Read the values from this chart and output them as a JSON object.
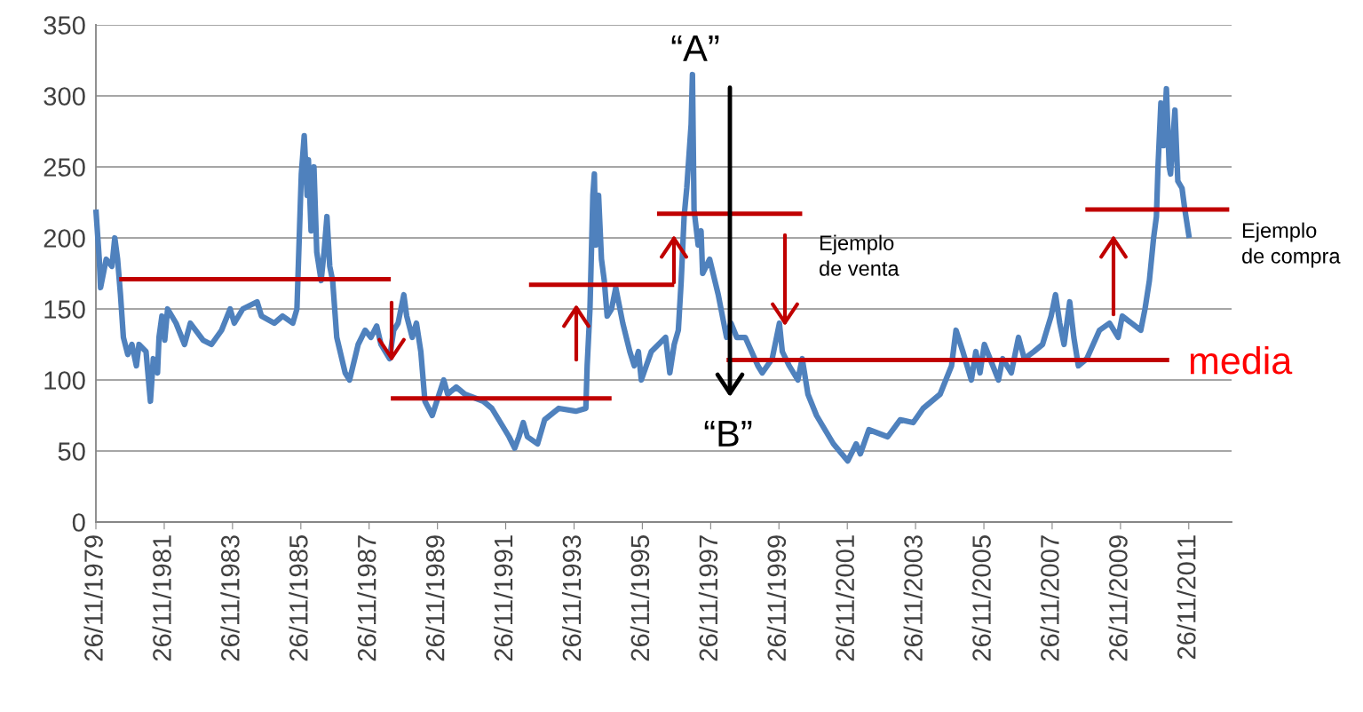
{
  "chart_data": {
    "type": "line",
    "xlim": [
      "1979-11-26",
      "2013-02-26"
    ],
    "ylim": [
      0,
      350
    ],
    "yticks": [
      0,
      50,
      100,
      150,
      200,
      250,
      300,
      350
    ],
    "xticks": [
      {
        "value": "1979-11-26",
        "label": "26/11/1979"
      },
      {
        "value": "1981-11-26",
        "label": "26/11/1981"
      },
      {
        "value": "1983-11-26",
        "label": "26/11/1983"
      },
      {
        "value": "1985-11-26",
        "label": "26/11/1985"
      },
      {
        "value": "1987-11-26",
        "label": "26/11/1987"
      },
      {
        "value": "1989-11-26",
        "label": "26/11/1989"
      },
      {
        "value": "1991-11-26",
        "label": "26/11/1991"
      },
      {
        "value": "1993-11-26",
        "label": "26/11/1993"
      },
      {
        "value": "1995-11-26",
        "label": "26/11/1995"
      },
      {
        "value": "1997-11-26",
        "label": "26/11/1997"
      },
      {
        "value": "1999-11-26",
        "label": "26/11/1999"
      },
      {
        "value": "2001-11-26",
        "label": "26/11/2001"
      },
      {
        "value": "2003-11-26",
        "label": "26/11/2003"
      },
      {
        "value": "2005-11-26",
        "label": "26/11/2005"
      },
      {
        "value": "2007-11-26",
        "label": "26/11/2007"
      },
      {
        "value": "2009-11-26",
        "label": "26/11/2009"
      },
      {
        "value": "2011-11-26",
        "label": "26/11/2011"
      }
    ],
    "grid": "y",
    "marker": "none",
    "line_style": "solid",
    "series": [
      {
        "color": "#4f81bd",
        "x": [
          "1979-11-26",
          "1980-01-01",
          "1980-01-15",
          "1980-03-15",
          "1980-05-15",
          "1980-06-15",
          "1980-07-15",
          "1980-08-15",
          "1980-09-15",
          "1980-11-01",
          "1980-12-15",
          "1981-02-01",
          "1981-03-01",
          "1981-05-15",
          "1981-07-01",
          "1981-08-01",
          "1981-09-15",
          "1981-10-01",
          "1981-11-01",
          "1981-12-01",
          "1982-01-01",
          "1982-04-01",
          "1982-07-01",
          "1982-09-01",
          "1983-01-15",
          "1983-04-15",
          "1983-08-01",
          "1983-11-01",
          "1983-12-15",
          "1984-03-15",
          "1984-08-15",
          "1984-10-01",
          "1985-02-15",
          "1985-05-15",
          "1985-09-01",
          "1985-10-15",
          "1985-12-01",
          "1986-01-01",
          "1986-02-01",
          "1986-02-15",
          "1986-03-15",
          "1986-04-15",
          "1986-05-15",
          "1986-07-01",
          "1986-08-01",
          "1986-09-01",
          "1986-10-01",
          "1986-11-01",
          "1986-12-15",
          "1987-03-15",
          "1987-05-01",
          "1987-08-01",
          "1987-10-15",
          "1987-12-15",
          "1988-02-15",
          "1988-04-01",
          "1988-07-01",
          "1988-08-15",
          "1988-10-01",
          "1988-12-01",
          "1989-01-01",
          "1989-03-01",
          "1989-04-15",
          "1989-06-01",
          "1989-07-15",
          "1989-10-01",
          "1990-02-01",
          "1990-03-15",
          "1990-06-15",
          "1990-09-15",
          "1991-04-01",
          "1991-07-01",
          "1991-10-01",
          "1992-01-01",
          "1992-03-01",
          "1992-04-15",
          "1992-06-01",
          "1992-07-15",
          "1992-11-01",
          "1993-01-15",
          "1993-06-15",
          "1993-12-15",
          "1994-04-01",
          "1994-04-15",
          "1994-05-15",
          "1994-06-15",
          "1994-07-01",
          "1994-07-15",
          "1994-08-15",
          "1994-09-15",
          "1994-10-15",
          "1994-11-15",
          "1995-01-01",
          "1995-02-15",
          "1995-05-01",
          "1995-07-15",
          "1995-09-01",
          "1995-10-15",
          "1995-11-15",
          "1996-03-01",
          "1996-08-01",
          "1996-09-15",
          "1996-11-01",
          "1996-12-15",
          "1997-01-15",
          "1997-02-15",
          "1997-03-15",
          "1997-05-01",
          "1997-05-15",
          "1997-06-01",
          "1997-07-15",
          "1997-08-15",
          "1997-09-01",
          "1997-11-15",
          "1998-02-15",
          "1998-05-15",
          "1998-07-01",
          "1998-09-01",
          "1998-12-01",
          "1999-04-15",
          "1999-06-01",
          "1999-09-15",
          "1999-12-01",
          "2000-01-01",
          "2000-03-15",
          "2000-06-15",
          "2000-08-01",
          "2000-10-01",
          "2001-01-01",
          "2001-04-01",
          "2001-07-01",
          "2001-12-01",
          "2002-03-01",
          "2002-04-15",
          "2002-07-15",
          "2003-02-01",
          "2003-06-15",
          "2003-11-01",
          "2004-02-15",
          "2004-08-15",
          "2004-12-15",
          "2005-02-01",
          "2005-04-15",
          "2005-07-15",
          "2005-09-01",
          "2005-10-15",
          "2005-12-01",
          "2006-05-01",
          "2006-06-15",
          "2006-09-15",
          "2006-12-01",
          "2007-02-01",
          "2007-05-15",
          "2007-08-15",
          "2007-11-15",
          "2008-01-01",
          "2008-02-15",
          "2008-04-01",
          "2008-06-01",
          "2008-07-15",
          "2008-09-01",
          "2008-12-01",
          "2009-04-15",
          "2009-08-01",
          "2009-11-01",
          "2009-12-15",
          "2010-07-01",
          "2010-08-15",
          "2010-10-01",
          "2010-11-15",
          "2010-12-15",
          "2011-01-01",
          "2011-02-01",
          "2011-03-01",
          "2011-04-01",
          "2011-05-01",
          "2011-05-15",
          "2011-07-01",
          "2011-08-01",
          "2011-09-15",
          "2011-10-15",
          "2011-12-01"
        ],
        "values": [
          220,
          185,
          165,
          185,
          180,
          200,
          185,
          160,
          130,
          118,
          125,
          110,
          125,
          120,
          85,
          115,
          105,
          130,
          145,
          128,
          150,
          140,
          125,
          140,
          128,
          125,
          135,
          150,
          140,
          150,
          155,
          145,
          140,
          145,
          140,
          150,
          245,
          272,
          230,
          255,
          205,
          250,
          190,
          170,
          190,
          215,
          180,
          170,
          130,
          105,
          100,
          125,
          135,
          130,
          138,
          125,
          115,
          135,
          140,
          160,
          145,
          130,
          140,
          120,
          85,
          75,
          100,
          90,
          95,
          90,
          85,
          80,
          70,
          60,
          52,
          60,
          70,
          60,
          55,
          72,
          80,
          78,
          80,
          110,
          150,
          230,
          245,
          195,
          230,
          185,
          170,
          145,
          150,
          165,
          140,
          120,
          110,
          120,
          100,
          120,
          130,
          105,
          125,
          135,
          170,
          215,
          235,
          280,
          315,
          220,
          195,
          205,
          175,
          185,
          160,
          130,
          140,
          130,
          130,
          110,
          105,
          115,
          140,
          120,
          110,
          100,
          115,
          90,
          75,
          65,
          55,
          43,
          55,
          48,
          65,
          60,
          72,
          70,
          80,
          90,
          110,
          135,
          120,
          100,
          120,
          105,
          125,
          100,
          115,
          105,
          130,
          115,
          120,
          125,
          145,
          160,
          140,
          125,
          155,
          130,
          110,
          115,
          135,
          140,
          130,
          145,
          135,
          150,
          170,
          200,
          215,
          250,
          295,
          265,
          305,
          250,
          245,
          290,
          240,
          235,
          220,
          200
        ]
      },
      {
        "color": "#c00000",
        "x": [
          "1980-08-01",
          "1988-07-15"
        ],
        "values": [
          171,
          171
        ]
      },
      {
        "color": "#c00000",
        "x": [
          "1988-07-15",
          "1995-01-01"
        ],
        "values": [
          87,
          87
        ]
      },
      {
        "color": "#c00000",
        "x": [
          "1992-08-01",
          "1996-11-01"
        ],
        "values": [
          167,
          167
        ]
      },
      {
        "color": "#c00000",
        "x": [
          "1996-05-01",
          "2000-08-01"
        ],
        "values": [
          217,
          217
        ]
      },
      {
        "color": "#c00000",
        "x": [
          "1998-05-15",
          "2011-05-01"
        ],
        "values": [
          114,
          114
        ]
      },
      {
        "color": "#c00000",
        "x": [
          "2008-11-15",
          "2013-02-01"
        ],
        "values": [
          220,
          220
        ]
      }
    ],
    "annotations": [
      "“A”",
      "“B”",
      "Ejemplo\nde venta",
      "Ejemplo\nde compra",
      "media"
    ]
  }
}
